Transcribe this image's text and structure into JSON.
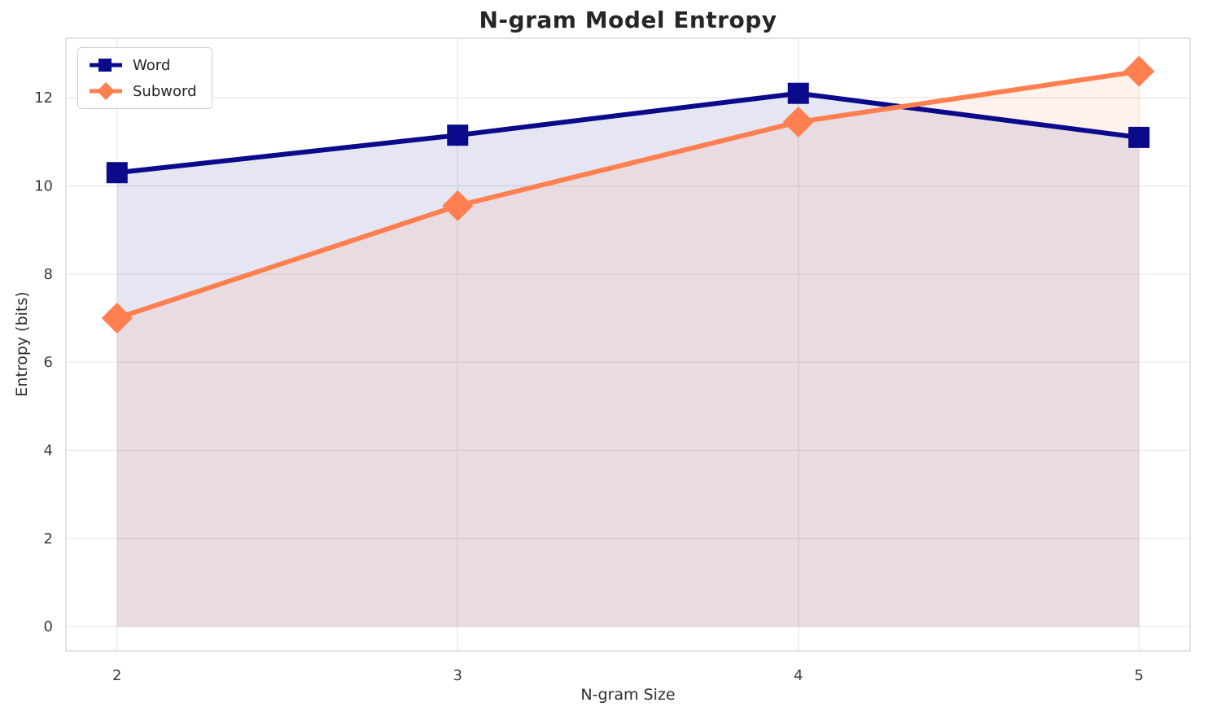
{
  "chart_data": {
    "type": "line",
    "title": "N-gram Model Entropy",
    "xlabel": "N-gram Size",
    "ylabel": "Entropy (bits)",
    "x": [
      2,
      3,
      4,
      5
    ],
    "series": [
      {
        "name": "Word",
        "values": [
          10.3,
          11.15,
          12.1,
          11.1
        ],
        "color": "#0a0a8b",
        "marker": "square",
        "fill_alpha": 0.1
      },
      {
        "name": "Subword",
        "values": [
          7.0,
          9.55,
          11.45,
          12.6
        ],
        "color": "#ff7f50",
        "marker": "diamond",
        "fill_alpha": 0.1
      }
    ],
    "xticks": [
      2,
      3,
      4,
      5
    ],
    "yticks": [
      0,
      2,
      4,
      6,
      8,
      10,
      12
    ],
    "xlim": [
      1.85,
      5.15
    ],
    "ylim": [
      -0.55,
      13.35
    ],
    "area_baseline": 0,
    "grid": true,
    "legend_position": "upper left",
    "style": {
      "grid_color": "#e7e7e7",
      "spine_color": "#d4d4d4",
      "tick_color": "#3a3a3a",
      "background": "#ffffff"
    }
  }
}
